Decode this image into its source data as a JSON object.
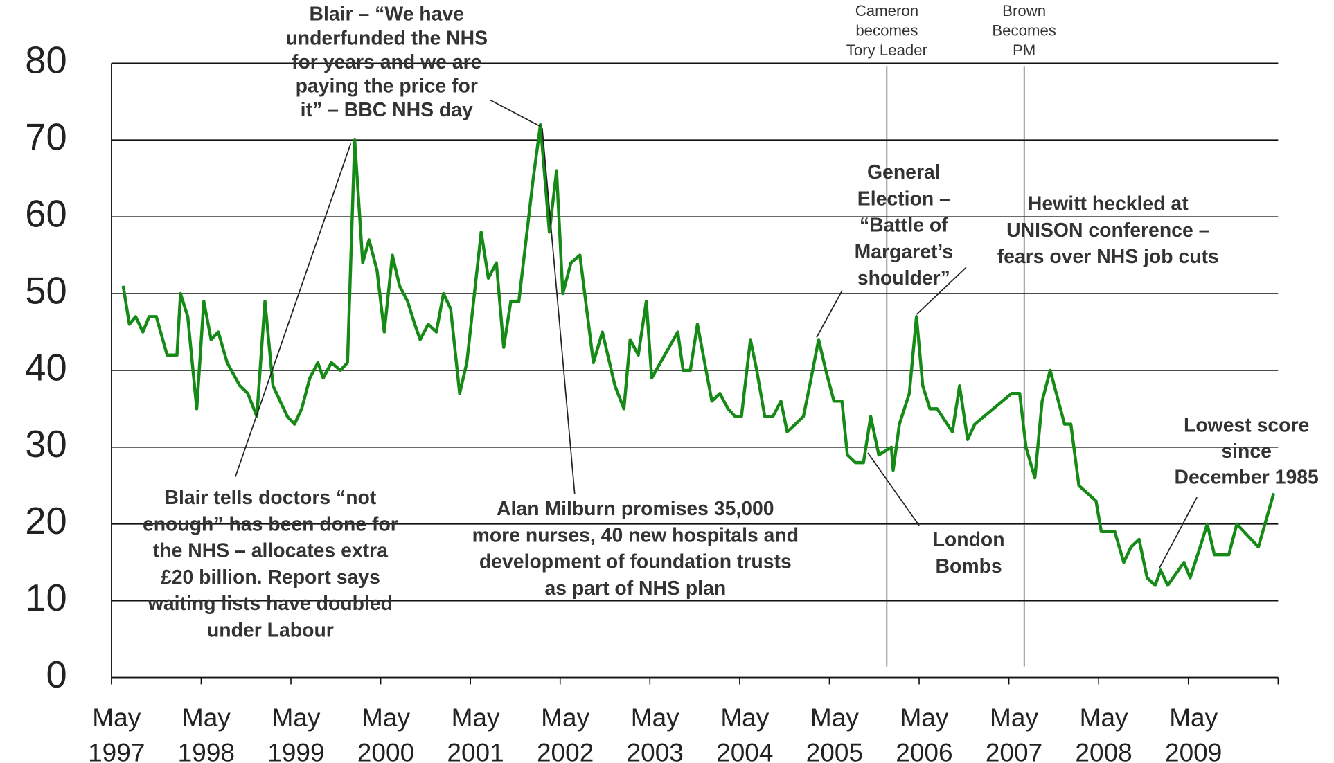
{
  "chart_data": {
    "type": "line",
    "x": [
      1997.46,
      1997.53,
      1997.6,
      1997.68,
      1997.75,
      1997.83,
      1997.95,
      1998.06,
      1998.1,
      1998.18,
      1998.28,
      1998.36,
      1998.44,
      1998.52,
      1998.62,
      1998.76,
      1998.85,
      1998.95,
      1999.04,
      1999.13,
      1999.29,
      1999.37,
      1999.45,
      1999.54,
      1999.63,
      1999.69,
      1999.78,
      1999.88,
      1999.96,
      2000.04,
      2000.13,
      2000.2,
      2000.29,
      2000.37,
      2000.46,
      2000.54,
      2000.63,
      2000.71,
      2000.77,
      2000.86,
      2000.95,
      2001.03,
      2001.11,
      2001.21,
      2001.29,
      2001.45,
      2001.53,
      2001.62,
      2001.7,
      2001.78,
      2001.87,
      2002.03,
      2002.11,
      2002.21,
      2002.29,
      2002.36,
      2002.45,
      2002.55,
      2002.7,
      2002.8,
      2002.94,
      2003.04,
      2003.11,
      2003.2,
      2003.29,
      2003.35,
      2003.64,
      2003.7,
      2003.78,
      2003.86,
      2004.02,
      2004.11,
      2004.2,
      2004.28,
      2004.35,
      2004.45,
      2004.52,
      2004.61,
      2004.7,
      2004.79,
      2004.86,
      2005.04,
      2005.11,
      2005.21,
      2005.29,
      2005.38,
      2005.47,
      2005.53,
      2005.62,
      2005.71,
      2005.79,
      2005.88,
      2006.02,
      2006.04,
      2006.11,
      2006.22,
      2006.3,
      2006.37,
      2006.45,
      2006.53,
      2006.7,
      2006.78,
      2006.87,
      2006.95,
      2007.36,
      2007.45,
      2007.52,
      2007.62,
      2007.7,
      2007.79,
      2007.95,
      2008.02,
      2008.11,
      2008.3,
      2008.36,
      2008.51,
      2008.61,
      2008.69,
      2008.78,
      2008.87,
      2008.96,
      2009.02,
      2009.1,
      2009.28,
      2009.35,
      2009.46,
      2009.54,
      2009.62,
      2009.78,
      2009.87,
      2010.11,
      2010.28
    ],
    "series": [
      {
        "color": "#168a16",
        "values": [
          51,
          46,
          47,
          45,
          47,
          47,
          42,
          42,
          50,
          47,
          35,
          49,
          44,
          45,
          41,
          38,
          37,
          34,
          49,
          38,
          34,
          33,
          35,
          39,
          41,
          39,
          41,
          40,
          41,
          70,
          54,
          57,
          53,
          45,
          55,
          51,
          49,
          46,
          44,
          46,
          45,
          50,
          48,
          37,
          41,
          58,
          52,
          54,
          43,
          49,
          49,
          65,
          72,
          58,
          66,
          50,
          54,
          55,
          41,
          45,
          38,
          35,
          44,
          42,
          49,
          39,
          45,
          40,
          40,
          46,
          36,
          37,
          35,
          34,
          34,
          44,
          40,
          34,
          34,
          36,
          32,
          34,
          38,
          44,
          40,
          36,
          36,
          29,
          28,
          28,
          34,
          29,
          30,
          27,
          33,
          37,
          47,
          38,
          35,
          35,
          32,
          38,
          31,
          33,
          37,
          37,
          30,
          26,
          36,
          40,
          33,
          33,
          25,
          23,
          19,
          19,
          15,
          17,
          18,
          13,
          12,
          14,
          12,
          15,
          13,
          17,
          20,
          16,
          16,
          20,
          17,
          24
        ]
      }
    ],
    "xlim": [
      1997.33,
      2010.33
    ],
    "xticks": [
      {
        "value": 1997.33,
        "label": "May 1997"
      },
      {
        "value": 1998.33,
        "label": "May 1998"
      },
      {
        "value": 1999.33,
        "label": "May 1999"
      },
      {
        "value": 2000.33,
        "label": "May 2000"
      },
      {
        "value": 2001.33,
        "label": "May 2001"
      },
      {
        "value": 2002.33,
        "label": "May 2002"
      },
      {
        "value": 2003.33,
        "label": "May 2003"
      },
      {
        "value": 2004.33,
        "label": "May 2004"
      },
      {
        "value": 2005.33,
        "label": "May 2005"
      },
      {
        "value": 2006.33,
        "label": "May 2006"
      },
      {
        "value": 2007.33,
        "label": "May 2007"
      },
      {
        "value": 2008.33,
        "label": "May 2008"
      },
      {
        "value": 2009.33,
        "label": "May 2009"
      }
    ],
    "ylim": [
      0,
      80
    ],
    "yticks": [
      0,
      10,
      20,
      30,
      40,
      50,
      60,
      70,
      80
    ],
    "grid": true,
    "events": [
      {
        "x": 2005.97,
        "lines": [
          "Cameron",
          "becomes",
          "Tory Leader"
        ]
      },
      {
        "x": 2007.5,
        "lines": [
          "Brown",
          "Becomes",
          "PM"
        ]
      }
    ],
    "annotations": [
      {
        "lines": [
          "Blair – “We have",
          "underfunded the NHS",
          "for years and we are",
          "paying the price for",
          "it” – BBC NHS day"
        ]
      },
      {
        "lines": [
          "Blair tells doctors “not",
          "enough” has been done for",
          "the NHS – allocates extra",
          "£20 billion. Report says",
          "waiting lists have doubled",
          "under Labour"
        ]
      },
      {
        "lines": [
          "Alan Milburn promises 35,000",
          "more nurses, 40 new hospitals and",
          "development of foundation trusts",
          "as part of NHS plan"
        ]
      },
      {
        "lines": [
          "General",
          "Election –",
          "“Battle of",
          "Margaret’s",
          "shoulder”"
        ]
      },
      {
        "lines": [
          "Hewitt heckled at",
          "UNISON conference –",
          "fears over NHS job cuts"
        ]
      },
      {
        "lines": [
          "London",
          "Bombs"
        ]
      },
      {
        "lines": [
          "Lowest score",
          "since",
          "December 1985"
        ]
      }
    ]
  }
}
